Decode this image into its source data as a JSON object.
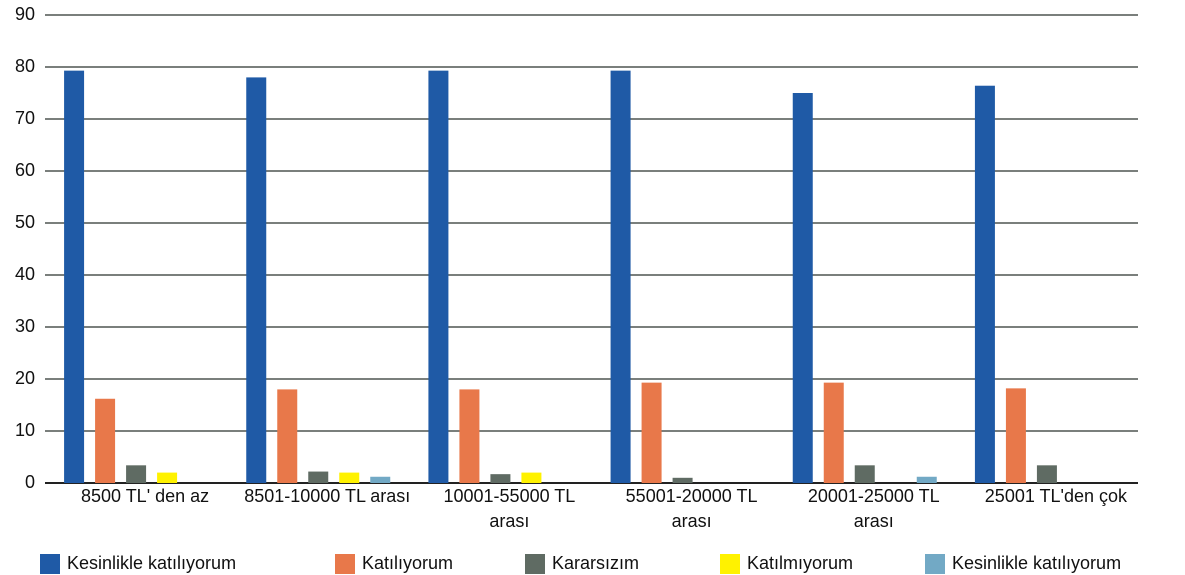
{
  "chart_data": {
    "type": "bar",
    "categories": [
      "8500 TL' den az",
      "8501-10000 TL arası",
      "10001-55000 TL arası",
      "55001-20000 TL arası",
      "20001-25000 TL arası",
      "25001 TL'den çok"
    ],
    "series": [
      {
        "name": "Kesinlikle katılıyorum",
        "color": "#1f5aa6",
        "values": [
          79.3,
          78.0,
          79.3,
          79.3,
          75.0,
          76.4
        ]
      },
      {
        "name": "Katılıyorum",
        "color": "#e8784a",
        "values": [
          16.2,
          18.0,
          18.0,
          19.3,
          19.3,
          18.2
        ]
      },
      {
        "name": "Kararsızım",
        "color": "#5f6b63",
        "values": [
          3.4,
          2.2,
          1.7,
          1.0,
          3.4,
          3.4
        ]
      },
      {
        "name": "Katılmıyorum",
        "color": "#fff200",
        "values": [
          2.0,
          2.0,
          2.0,
          0,
          0,
          0
        ]
      },
      {
        "name": "Kesinlikle katılıyorum",
        "color": "#72a9c5",
        "values": [
          0,
          1.2,
          0,
          0,
          1.2,
          0
        ]
      }
    ],
    "ylim": [
      0,
      90
    ],
    "yticks": [
      0,
      10,
      20,
      30,
      40,
      50,
      60,
      70,
      80,
      90
    ],
    "grid": true
  }
}
